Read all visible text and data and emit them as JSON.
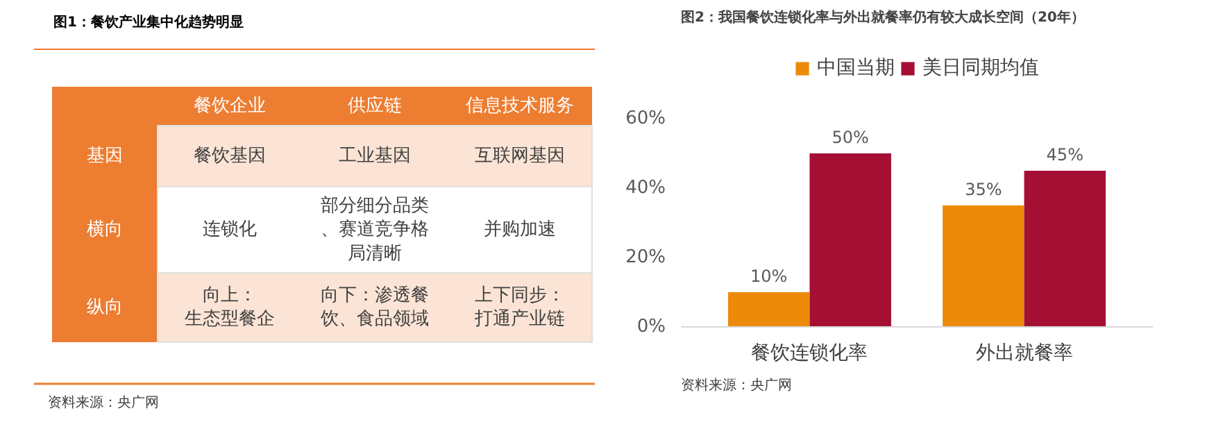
{
  "chart_data": [
    {
      "type": "other",
      "title": "图1：餐饮产业集中化趋势明显",
      "categories": [
        "餐饮企业",
        "供应链",
        "信息技术服务"
      ],
      "y_categories": [
        "基因",
        "横向",
        "纵向"
      ],
      "cell_labels": [
        [
          "餐饮基因",
          "工业基因",
          "互联网基因"
        ],
        [
          "连锁化",
          "部分细分品类、赛道竞争格局清晰",
          "并购加速"
        ],
        [
          "向上：生态型餐企",
          "向下：渗透餐饮、食品领域",
          "上下同步：打通产业链"
        ]
      ],
      "annotations": [
        "资料来源：央广网"
      ]
    },
    {
      "type": "bar",
      "title": "图2：我国餐饮连锁化率与外出就餐率仍有较大成长空间（20年）",
      "categories": [
        "餐饮连锁化率",
        "外出就餐率"
      ],
      "series": [
        {
          "name": "中国当期",
          "color": "#ed8a0a",
          "values": [
            10,
            35
          ],
          "value_labels": [
            "10%",
            "35%"
          ]
        },
        {
          "name": "美日同期均值",
          "color": "#a50f33",
          "values": [
            50,
            45
          ],
          "value_labels": [
            "50%",
            "45%"
          ]
        }
      ],
      "ylim": [
        0,
        60
      ],
      "yticks": [
        {
          "value": 0,
          "label": "0%"
        },
        {
          "value": 20,
          "label": "20%"
        },
        {
          "value": 40,
          "label": "40%"
        },
        {
          "value": 60,
          "label": "60%"
        }
      ],
      "legend": "top",
      "grid": false,
      "annotations": [
        "资料来源：央广网"
      ]
    }
  ]
}
